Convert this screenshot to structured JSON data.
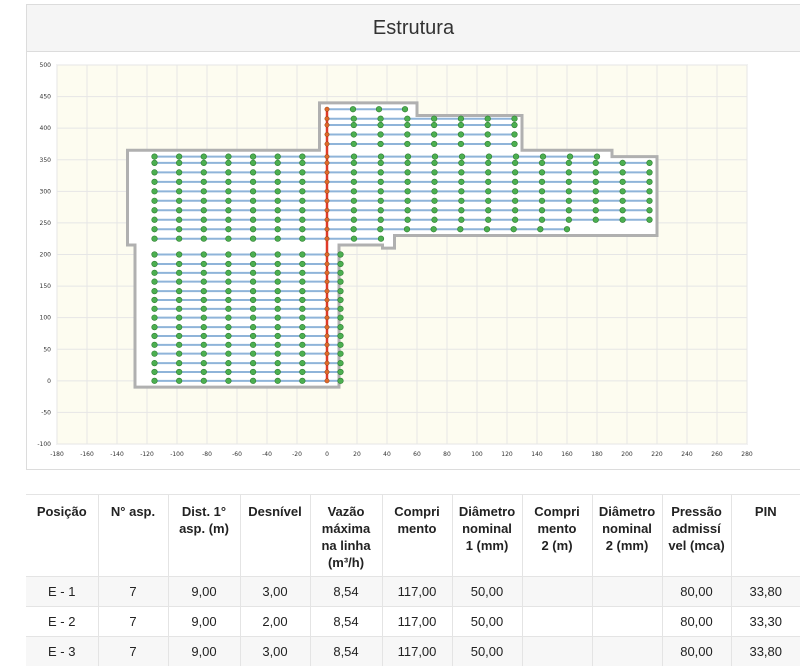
{
  "panel": {
    "title": "Estrutura"
  },
  "chart_data": {
    "type": "scatter",
    "title": "",
    "xlabel": "",
    "ylabel": "",
    "xlim": [
      -180,
      280
    ],
    "ylim": [
      -100,
      500
    ],
    "x_ticks": [
      "-180",
      "-160",
      "-140",
      "-120",
      "-100",
      "-80",
      "-60",
      "-40",
      "-20",
      "0",
      "20",
      "40",
      "60",
      "80",
      "100",
      "120",
      "140",
      "160",
      "180",
      "200",
      "220",
      "240",
      "260",
      "280"
    ],
    "y_ticks": [
      "500",
      "450",
      "400",
      "350",
      "300",
      "250",
      "200",
      "150",
      "100",
      "50",
      "0",
      "-50",
      "-100"
    ],
    "grid": true,
    "boundary": [
      [
        -128,
        -10
      ],
      [
        8,
        -10
      ],
      [
        8,
        215
      ],
      [
        37,
        215
      ],
      [
        37,
        210
      ],
      [
        45,
        210
      ],
      [
        45,
        230
      ],
      [
        220,
        230
      ],
      [
        220,
        355
      ],
      [
        190,
        355
      ],
      [
        190,
        365
      ],
      [
        130,
        365
      ],
      [
        130,
        420
      ],
      [
        60,
        420
      ],
      [
        60,
        440
      ],
      [
        -5,
        440
      ],
      [
        -5,
        365
      ],
      [
        -133,
        365
      ],
      [
        -133,
        215
      ],
      [
        -128,
        215
      ]
    ],
    "main_line": {
      "x": 0,
      "y_from": 0,
      "y_to": 430,
      "color": "#e03a2a"
    },
    "branches": [
      {
        "y": 0,
        "x_from": -115,
        "x_to": 0
      },
      {
        "y": 14,
        "x_from": -115,
        "x_to": 0
      },
      {
        "y": 28,
        "x_from": -115,
        "x_to": 0
      },
      {
        "y": 43,
        "x_from": -115,
        "x_to": 0
      },
      {
        "y": 57,
        "x_from": -115,
        "x_to": 0
      },
      {
        "y": 71,
        "x_from": -115,
        "x_to": 0
      },
      {
        "y": 85,
        "x_from": -115,
        "x_to": 0
      },
      {
        "y": 100,
        "x_from": -115,
        "x_to": 0
      },
      {
        "y": 114,
        "x_from": -115,
        "x_to": 0
      },
      {
        "y": 128,
        "x_from": -115,
        "x_to": 0
      },
      {
        "y": 142,
        "x_from": -115,
        "x_to": 0
      },
      {
        "y": 157,
        "x_from": -115,
        "x_to": 0
      },
      {
        "y": 171,
        "x_from": -115,
        "x_to": 0
      },
      {
        "y": 185,
        "x_from": -115,
        "x_to": 0
      },
      {
        "y": 200,
        "x_from": -115,
        "x_to": 0
      },
      {
        "y": 0,
        "x_from": 0,
        "x_to": 9
      },
      {
        "y": 14,
        "x_from": 0,
        "x_to": 9
      },
      {
        "y": 28,
        "x_from": 0,
        "x_to": 9
      },
      {
        "y": 43,
        "x_from": 0,
        "x_to": 9
      },
      {
        "y": 57,
        "x_from": 0,
        "x_to": 9
      },
      {
        "y": 71,
        "x_from": 0,
        "x_to": 9
      },
      {
        "y": 85,
        "x_from": 0,
        "x_to": 9
      },
      {
        "y": 100,
        "x_from": 0,
        "x_to": 9
      },
      {
        "y": 114,
        "x_from": 0,
        "x_to": 9
      },
      {
        "y": 128,
        "x_from": 0,
        "x_to": 9
      },
      {
        "y": 142,
        "x_from": 0,
        "x_to": 9
      },
      {
        "y": 157,
        "x_from": 0,
        "x_to": 9
      },
      {
        "y": 171,
        "x_from": 0,
        "x_to": 9
      },
      {
        "y": 185,
        "x_from": 0,
        "x_to": 9
      },
      {
        "y": 200,
        "x_from": 0,
        "x_to": 9
      },
      {
        "y": 225,
        "x_from": -115,
        "x_to": 0
      },
      {
        "y": 240,
        "x_from": -115,
        "x_to": 0
      },
      {
        "y": 255,
        "x_from": -115,
        "x_to": 0
      },
      {
        "y": 270,
        "x_from": -115,
        "x_to": 0
      },
      {
        "y": 285,
        "x_from": -115,
        "x_to": 0
      },
      {
        "y": 300,
        "x_from": -115,
        "x_to": 0
      },
      {
        "y": 315,
        "x_from": -115,
        "x_to": 0
      },
      {
        "y": 330,
        "x_from": -115,
        "x_to": 0
      },
      {
        "y": 345,
        "x_from": -115,
        "x_to": 0
      },
      {
        "y": 355,
        "x_from": -115,
        "x_to": 0
      },
      {
        "y": 225,
        "x_from": 0,
        "x_to": 36
      },
      {
        "y": 240,
        "x_from": 0,
        "x_to": 160
      },
      {
        "y": 255,
        "x_from": 0,
        "x_to": 215
      },
      {
        "y": 270,
        "x_from": 0,
        "x_to": 215
      },
      {
        "y": 285,
        "x_from": 0,
        "x_to": 215
      },
      {
        "y": 300,
        "x_from": 0,
        "x_to": 215
      },
      {
        "y": 315,
        "x_from": 0,
        "x_to": 215
      },
      {
        "y": 330,
        "x_from": 0,
        "x_to": 215
      },
      {
        "y": 345,
        "x_from": 0,
        "x_to": 215
      },
      {
        "y": 355,
        "x_from": 0,
        "x_to": 180
      },
      {
        "y": 375,
        "x_from": 0,
        "x_to": 125
      },
      {
        "y": 390,
        "x_from": 0,
        "x_to": 125
      },
      {
        "y": 405,
        "x_from": 0,
        "x_to": 125
      },
      {
        "y": 415,
        "x_from": 0,
        "x_to": 125
      },
      {
        "y": 430,
        "x_from": 0,
        "x_to": 52
      }
    ],
    "colors": {
      "pipe": "#8fb4d9",
      "sprinkler": "#4caf50",
      "boundary": "#b0b0b0",
      "grid": "#e6e6e6"
    }
  },
  "table": {
    "headers": [
      [
        "Posição"
      ],
      [
        "N° asp."
      ],
      [
        "Dist. 1°",
        "asp. (m)"
      ],
      [
        "Desnível"
      ],
      [
        "Vazão",
        "máxima",
        "na linha",
        "(m³/h)"
      ],
      [
        "Compri",
        "mento"
      ],
      [
        "Diâmetro",
        "nominal",
        "1 (mm)"
      ],
      [
        "Compri",
        "mento",
        "2 (m)"
      ],
      [
        "Diâmetro",
        "nominal",
        "2 (mm)"
      ],
      [
        "Pressão",
        "admissí",
        "vel (mca)"
      ],
      [
        "PIN"
      ]
    ],
    "rows": [
      [
        "E - 1",
        "7",
        "9,00",
        "3,00",
        "8,54",
        "117,00",
        "50,00",
        "",
        "",
        "80,00",
        "33,80"
      ],
      [
        "E - 2",
        "7",
        "9,00",
        "2,00",
        "8,54",
        "117,00",
        "50,00",
        "",
        "",
        "80,00",
        "33,30"
      ],
      [
        "E - 3",
        "7",
        "9,00",
        "3,00",
        "8,54",
        "117,00",
        "50,00",
        "",
        "",
        "80,00",
        "33,80"
      ]
    ]
  }
}
